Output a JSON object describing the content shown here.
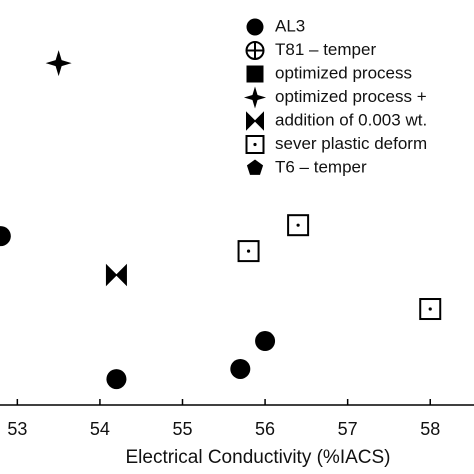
{
  "chart_data": {
    "type": "scatter",
    "x_label": "Electrical Conductivity (%IACS)",
    "xlim": [
      52.79,
      58.53
    ],
    "ylim": [
      0,
      100
    ],
    "xticks": [
      53,
      54,
      55,
      56,
      57,
      58
    ],
    "series": [
      {
        "name": "AL3",
        "marker": "circle",
        "color": "#000000",
        "x": [
          54.2,
          55.7,
          56.0,
          52.8
        ],
        "values": [
          6.4,
          8.9,
          15.8,
          41.7
        ]
      },
      {
        "name": "T81 – temper",
        "marker": "circle-plus",
        "color": "#000000",
        "x": [],
        "values": []
      },
      {
        "name": "optimized process",
        "marker": "square",
        "color": "#000000",
        "x": [],
        "values": []
      },
      {
        "name": "optimized process +",
        "marker": "star",
        "color": "#000000",
        "x": [
          53.5
        ],
        "values": [
          84.4
        ]
      },
      {
        "name": "addition of 0.003 wt.",
        "marker": "bowtie",
        "color": "#000000",
        "x": [
          54.2
        ],
        "values": [
          32.1
        ]
      },
      {
        "name": "sever plastic deform",
        "marker": "square-dot",
        "color": "#000000",
        "x": [
          55.8,
          56.4,
          58.0
        ],
        "values": [
          38.0,
          44.4,
          23.7
        ]
      },
      {
        "name": "T6 – temper",
        "marker": "pentagon",
        "color": "#000000",
        "x": [],
        "values": []
      }
    ]
  }
}
